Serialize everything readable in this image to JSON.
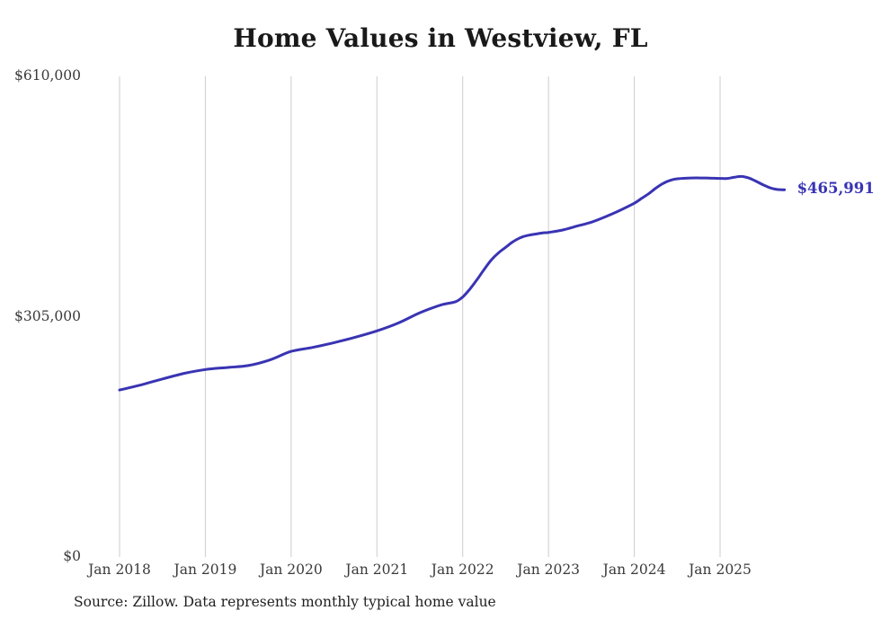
{
  "title": "Home Values in Westview, FL",
  "source_note": "Source: Zillow. Data represents monthly typical home value",
  "chart_data": {
    "type": "line",
    "title": "Home Values in Westview, FL",
    "series_name": "Monthly typical home value",
    "x_ticks": [
      "Jan 2018",
      "Jan 2019",
      "Jan 2020",
      "Jan 2021",
      "Jan 2022",
      "Jan 2023",
      "Jan 2024",
      "Jan 2025"
    ],
    "y_ticks": [
      {
        "label": "$0",
        "value": 0
      },
      {
        "label": "$305,000",
        "value": 305000
      },
      {
        "label": "$610,000",
        "value": 610000
      }
    ],
    "ylim": [
      0,
      610000
    ],
    "grid": "vertical-only",
    "legend": "none",
    "line_color": "#3934b3",
    "grid_color": "#cccccc",
    "end_label": "$465,991",
    "end_value": 465991,
    "points": [
      [
        "2018-01",
        212000
      ],
      [
        "2018-04",
        218500
      ],
      [
        "2018-07",
        226000
      ],
      [
        "2018-10",
        233000
      ],
      [
        "2019-01",
        238000
      ],
      [
        "2019-04",
        240500
      ],
      [
        "2019-07",
        243000
      ],
      [
        "2019-10",
        250000
      ],
      [
        "2020-01",
        261000
      ],
      [
        "2020-04",
        266000
      ],
      [
        "2020-07",
        272000
      ],
      [
        "2020-10",
        279000
      ],
      [
        "2021-01",
        287000
      ],
      [
        "2021-04",
        297000
      ],
      [
        "2021-07",
        310000
      ],
      [
        "2021-10",
        320000
      ],
      [
        "2021-12",
        324000
      ],
      [
        "2022-01",
        330000
      ],
      [
        "2022-02",
        340000
      ],
      [
        "2022-03",
        352000
      ],
      [
        "2022-04",
        365000
      ],
      [
        "2022-05",
        377000
      ],
      [
        "2022-06",
        386000
      ],
      [
        "2022-07",
        393000
      ],
      [
        "2022-08",
        400000
      ],
      [
        "2022-09",
        405000
      ],
      [
        "2022-10",
        408000
      ],
      [
        "2022-12",
        411000
      ],
      [
        "2023-01",
        412000
      ],
      [
        "2023-03",
        415000
      ],
      [
        "2023-05",
        420000
      ],
      [
        "2023-07",
        425000
      ],
      [
        "2023-09",
        432000
      ],
      [
        "2023-11",
        440000
      ],
      [
        "2024-01",
        449000
      ],
      [
        "2024-02",
        455000
      ],
      [
        "2024-03",
        461000
      ],
      [
        "2024-04",
        468000
      ],
      [
        "2024-05",
        474000
      ],
      [
        "2024-06",
        478000
      ],
      [
        "2024-07",
        480000
      ],
      [
        "2024-09",
        481000
      ],
      [
        "2024-11",
        481000
      ],
      [
        "2025-01",
        480500
      ],
      [
        "2025-02",
        480500
      ],
      [
        "2025-03",
        482000
      ],
      [
        "2025-04",
        483000
      ],
      [
        "2025-05",
        481000
      ],
      [
        "2025-06",
        477000
      ],
      [
        "2025-07",
        472500
      ],
      [
        "2025-08",
        468500
      ],
      [
        "2025-09",
        466500
      ],
      [
        "2025-10",
        465991
      ]
    ]
  }
}
